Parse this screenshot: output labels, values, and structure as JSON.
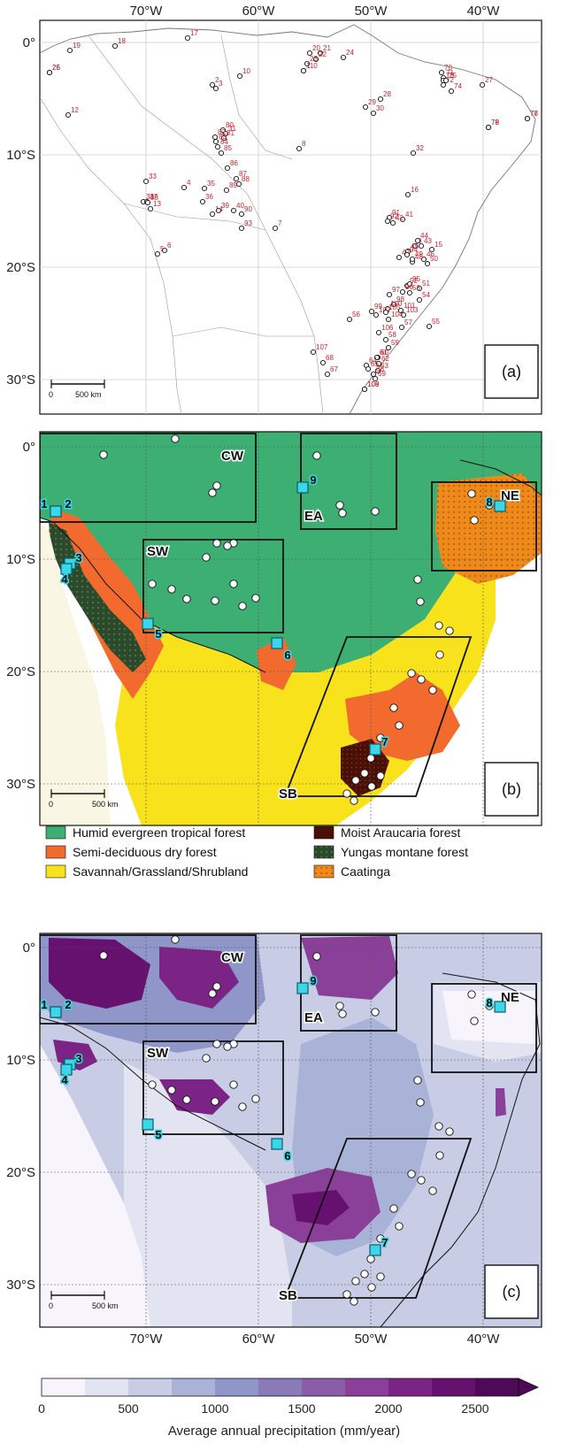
{
  "axes": {
    "lon_top": [
      "70°W",
      "60°W",
      "50°W",
      "40°W"
    ],
    "lon_bottom": [
      "70°W",
      "60°W",
      "50°W",
      "40°W"
    ],
    "lat_labels": [
      "0°",
      "10°S",
      "20°S",
      "30°S"
    ]
  },
  "panels": {
    "a": {
      "label": "(a)",
      "scale": {
        "zero": "0",
        "dist": "500 km"
      }
    },
    "b": {
      "label": "(b)",
      "scale": {
        "zero": "0",
        "dist": "500 km"
      }
    },
    "c": {
      "label": "(c)",
      "scale": {
        "zero": "0",
        "dist": "500 km"
      }
    }
  },
  "regions": [
    "CW",
    "EA",
    "NE",
    "SW",
    "SB"
  ],
  "legend": {
    "items": [
      {
        "label": "Humid evergreen tropical forest",
        "color": "#3daf72"
      },
      {
        "label": "Semi-deciduous dry forest",
        "color": "#f26a2e"
      },
      {
        "label": "Savannah/Grassland/Shrubland",
        "color": "#f7e21b"
      },
      {
        "label": "Moist Araucaria forest",
        "color": "#4a1006"
      },
      {
        "label": "Yungas montane forest",
        "color": "#2a4a2a"
      },
      {
        "label": "Caatinga",
        "color": "#ee8a1a"
      }
    ]
  },
  "colorbar": {
    "ticks": [
      "0",
      "500",
      "1000",
      "1500",
      "2000",
      "2500"
    ],
    "label": "Average annual precipitation (mm/year)",
    "colors": [
      "#f7f5fb",
      "#e3e4f1",
      "#c8cde5",
      "#a9b3d8",
      "#8f96c8",
      "#8a7bb8",
      "#8b5ca8",
      "#8a4098",
      "#7c2486",
      "#66106f",
      "#4e0a57"
    ]
  },
  "reference_sites": [
    "1",
    "2",
    "3",
    "4",
    "5",
    "6",
    "7",
    "8",
    "9"
  ],
  "site_labels": [
    "1",
    "2",
    "3",
    "4",
    "5",
    "6",
    "7",
    "8",
    "9",
    "10",
    "12",
    "13",
    "14",
    "15",
    "16",
    "17",
    "18",
    "19",
    "20",
    "21",
    "22",
    "23",
    "24",
    "25",
    "26",
    "27",
    "28",
    "29",
    "30",
    "31",
    "32",
    "33",
    "34",
    "35",
    "36",
    "37",
    "38",
    "39",
    "40",
    "41",
    "42",
    "43",
    "44",
    "45",
    "46",
    "47",
    "48",
    "49",
    "50",
    "51",
    "52",
    "53",
    "54",
    "55",
    "56",
    "57",
    "58",
    "59",
    "60",
    "61",
    "62",
    "63",
    "64",
    "65",
    "66",
    "67",
    "68",
    "69",
    "70",
    "71",
    "72",
    "73",
    "74",
    "75",
    "76",
    "77",
    "78",
    "79",
    "80",
    "81",
    "82",
    "83",
    "84",
    "85",
    "86",
    "87",
    "88",
    "89",
    "90",
    "91",
    "92",
    "93",
    "94",
    "95",
    "96",
    "97",
    "98",
    "99",
    "100",
    "101",
    "102",
    "103",
    "104",
    "105",
    "106",
    "107",
    "108",
    "109",
    "110"
  ]
}
